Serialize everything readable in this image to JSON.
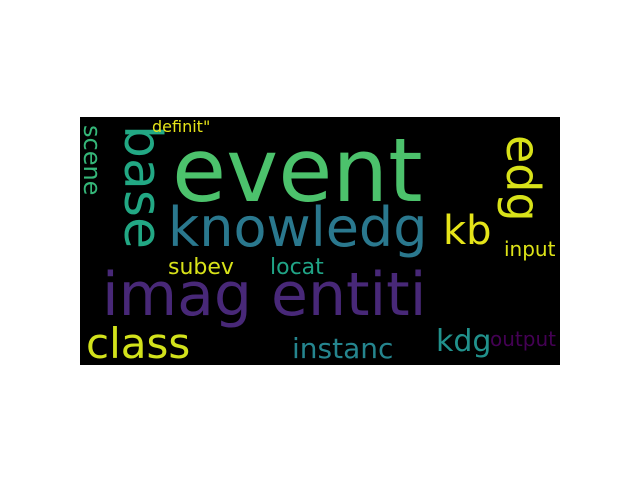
{
  "word_cloud": {
    "background": "#000000",
    "words": [
      {
        "text": "event",
        "color": "#4cc26c"
      },
      {
        "text": "imag entiti",
        "color": "#482878"
      },
      {
        "text": "knowledg",
        "color": "#2a788e"
      },
      {
        "text": "base",
        "color": "#22a884"
      },
      {
        "text": "edg",
        "color": "#d8e219"
      },
      {
        "text": "class",
        "color": "#d2e21b"
      },
      {
        "text": "kb",
        "color": "#e5e419"
      },
      {
        "text": "scene",
        "color": "#35b779"
      },
      {
        "text": "subev",
        "color": "#d8e219"
      },
      {
        "text": "locat",
        "color": "#20a486"
      },
      {
        "text": "instanc",
        "color": "#25858e"
      },
      {
        "text": "kdg",
        "color": "#21918c"
      },
      {
        "text": "input",
        "color": "#dde318"
      },
      {
        "text": "output",
        "color": "#440154"
      },
      {
        "text": "definit\"",
        "color": "#e5e419"
      }
    ]
  }
}
